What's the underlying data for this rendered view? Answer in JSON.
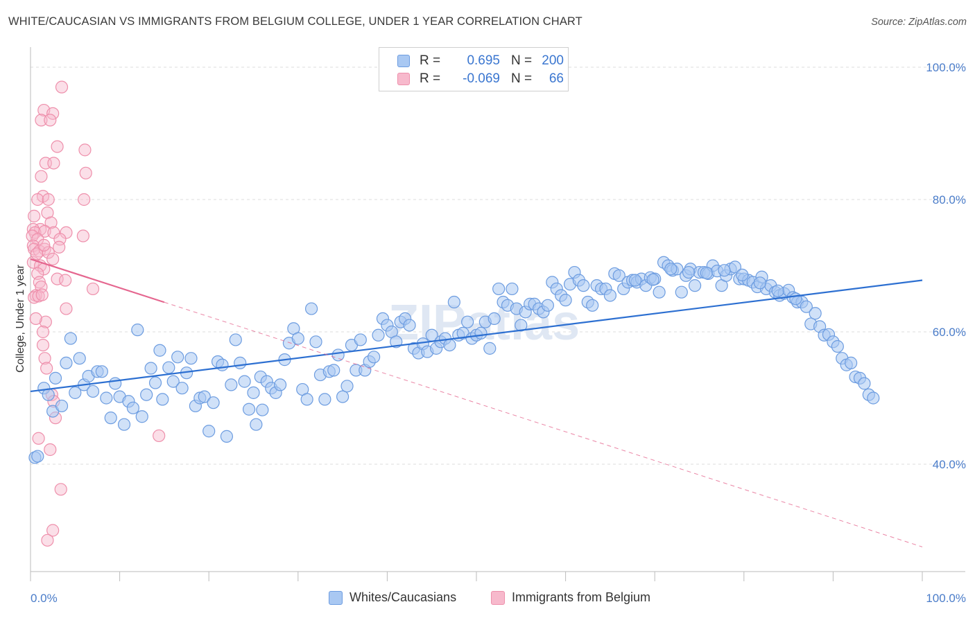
{
  "header": {
    "title": "WHITE/CAUCASIAN VS IMMIGRANTS FROM BELGIUM COLLEGE, UNDER 1 YEAR CORRELATION CHART",
    "source": "Source: ZipAtlas.com"
  },
  "watermark": "ZIPatlas",
  "legend": {
    "rows": [
      {
        "r_label": "R =",
        "r_value": "0.695",
        "n_label": "N =",
        "n_value": "200",
        "color": "#a9c8f2"
      },
      {
        "r_label": "R =",
        "r_value": "-0.069",
        "n_label": "N =",
        "n_value": "66",
        "color": "#f7b9cc"
      }
    ]
  },
  "bottom_legend": {
    "series1": "Whites/Caucasians",
    "series2": "Immigrants from Belgium"
  },
  "chart_data": {
    "type": "scatter",
    "title": "WHITE/CAUCASIAN VS IMMIGRANTS FROM BELGIUM COLLEGE, UNDER 1 YEAR CORRELATION CHART",
    "xlabel": "",
    "ylabel": "College, Under 1 year",
    "xlim": [
      0,
      100
    ],
    "ylim": [
      20,
      104
    ],
    "x_tick_labels": [
      "0.0%",
      "100.0%"
    ],
    "y_ticks": [
      40,
      60,
      80,
      100
    ],
    "y_tick_labels": [
      "40.0%",
      "60.0%",
      "80.0%",
      "100.0%"
    ],
    "grid": true,
    "legend_position": "top-center",
    "colors": {
      "blue_fill": "#a9c8f2",
      "blue_stroke": "#6c9ce0",
      "blue_line": "#2c6fd1",
      "pink_fill": "#f7b9cc",
      "pink_stroke": "#ee8fab",
      "pink_line": "#e5668f"
    },
    "series": [
      {
        "name": "Whites/Caucasians",
        "color": "#a9c8f2",
        "trend": {
          "x": [
            0,
            100
          ],
          "y": [
            51.0,
            67.8
          ],
          "style": "solid"
        },
        "points": [
          [
            0.5,
            41.0
          ],
          [
            0.8,
            41.2
          ],
          [
            1.5,
            51.5
          ],
          [
            2.0,
            50.5
          ],
          [
            2.5,
            48.0
          ],
          [
            2.8,
            53.0
          ],
          [
            3.5,
            48.8
          ],
          [
            4.0,
            55.3
          ],
          [
            4.5,
            59.0
          ],
          [
            5.0,
            50.8
          ],
          [
            5.5,
            56.0
          ],
          [
            6.0,
            52.0
          ],
          [
            6.5,
            53.3
          ],
          [
            7.0,
            51.0
          ],
          [
            7.5,
            54.0
          ],
          [
            8.0,
            54.0
          ],
          [
            8.5,
            50.0
          ],
          [
            9.0,
            47.0
          ],
          [
            9.5,
            52.2
          ],
          [
            10.0,
            50.2
          ],
          [
            10.5,
            46.0
          ],
          [
            11.0,
            49.5
          ],
          [
            11.5,
            48.5
          ],
          [
            12.0,
            60.3
          ],
          [
            12.5,
            47.2
          ],
          [
            13.0,
            50.5
          ],
          [
            13.5,
            54.5
          ],
          [
            14.0,
            52.3
          ],
          [
            14.5,
            57.2
          ],
          [
            14.8,
            49.8
          ],
          [
            15.5,
            54.6
          ],
          [
            16.0,
            52.5
          ],
          [
            16.5,
            56.2
          ],
          [
            17.0,
            51.5
          ],
          [
            17.5,
            53.8
          ],
          [
            18.0,
            56.0
          ],
          [
            18.5,
            48.8
          ],
          [
            19.0,
            50.0
          ],
          [
            19.5,
            50.2
          ],
          [
            20.0,
            45.0
          ],
          [
            20.5,
            49.3
          ],
          [
            21.0,
            55.5
          ],
          [
            21.5,
            55.0
          ],
          [
            22.0,
            44.2
          ],
          [
            22.5,
            52.0
          ],
          [
            23.0,
            58.8
          ],
          [
            23.5,
            55.3
          ],
          [
            24.0,
            52.5
          ],
          [
            24.5,
            48.3
          ],
          [
            25.0,
            50.8
          ],
          [
            25.3,
            46.0
          ],
          [
            25.8,
            53.2
          ],
          [
            26.0,
            48.2
          ],
          [
            26.5,
            52.5
          ],
          [
            27.0,
            51.5
          ],
          [
            27.5,
            50.8
          ],
          [
            28.0,
            52.0
          ],
          [
            28.5,
            55.8
          ],
          [
            29.0,
            58.3
          ],
          [
            29.5,
            60.5
          ],
          [
            30.0,
            59.0
          ],
          [
            30.5,
            51.3
          ],
          [
            31.0,
            49.8
          ],
          [
            31.5,
            63.5
          ],
          [
            32.0,
            58.5
          ],
          [
            32.5,
            53.5
          ],
          [
            33.0,
            49.8
          ],
          [
            33.5,
            54.0
          ],
          [
            34.0,
            54.2
          ],
          [
            34.5,
            56.5
          ],
          [
            35.0,
            50.2
          ],
          [
            35.5,
            51.8
          ],
          [
            36.0,
            58.0
          ],
          [
            36.5,
            54.2
          ],
          [
            37.0,
            58.8
          ],
          [
            37.5,
            54.2
          ],
          [
            38.0,
            55.5
          ],
          [
            38.5,
            56.2
          ],
          [
            39.0,
            59.5
          ],
          [
            39.5,
            62.0
          ],
          [
            40.0,
            61.0
          ],
          [
            40.5,
            60.0
          ],
          [
            41.0,
            58.5
          ],
          [
            41.5,
            61.5
          ],
          [
            42.0,
            62.0
          ],
          [
            42.5,
            61.0
          ],
          [
            43.0,
            57.5
          ],
          [
            43.5,
            56.8
          ],
          [
            44.0,
            58.2
          ],
          [
            44.5,
            57.0
          ],
          [
            45.0,
            59.5
          ],
          [
            45.5,
            57.5
          ],
          [
            46.0,
            58.5
          ],
          [
            46.5,
            59.0
          ],
          [
            47.0,
            58.0
          ],
          [
            47.5,
            64.5
          ],
          [
            48.0,
            59.5
          ],
          [
            48.5,
            59.8
          ],
          [
            49.0,
            61.5
          ],
          [
            49.5,
            59.0
          ],
          [
            50.0,
            59.5
          ],
          [
            50.5,
            59.8
          ],
          [
            51.0,
            61.5
          ],
          [
            51.5,
            57.5
          ],
          [
            52.0,
            62.0
          ],
          [
            52.5,
            66.5
          ],
          [
            53.0,
            64.5
          ],
          [
            53.5,
            64.0
          ],
          [
            54.0,
            66.5
          ],
          [
            54.5,
            63.5
          ],
          [
            55.0,
            61.0
          ],
          [
            55.5,
            63.0
          ],
          [
            56.0,
            64.2
          ],
          [
            56.5,
            64.2
          ],
          [
            57.0,
            63.5
          ],
          [
            57.5,
            63.0
          ],
          [
            58.0,
            64.0
          ],
          [
            58.5,
            67.5
          ],
          [
            59.0,
            66.5
          ],
          [
            59.5,
            65.5
          ],
          [
            60.0,
            64.8
          ],
          [
            60.5,
            67.2
          ],
          [
            61.0,
            69.0
          ],
          [
            61.5,
            67.8
          ],
          [
            62.0,
            67.0
          ],
          [
            62.5,
            64.5
          ],
          [
            63.0,
            64.0
          ],
          [
            63.5,
            67.0
          ],
          [
            64.0,
            66.5
          ],
          [
            64.5,
            66.5
          ],
          [
            65.0,
            65.5
          ],
          [
            65.5,
            68.8
          ],
          [
            66.0,
            68.5
          ],
          [
            66.5,
            66.5
          ],
          [
            67.0,
            67.5
          ],
          [
            67.5,
            67.8
          ],
          [
            68.0,
            67.5
          ],
          [
            68.5,
            68.0
          ],
          [
            69.0,
            67.0
          ],
          [
            69.5,
            68.2
          ],
          [
            70.0,
            68.0
          ],
          [
            70.5,
            66.0
          ],
          [
            71.0,
            70.5
          ],
          [
            71.5,
            70.0
          ],
          [
            72.0,
            69.3
          ],
          [
            72.5,
            69.5
          ],
          [
            73.0,
            66.0
          ],
          [
            73.5,
            68.5
          ],
          [
            74.0,
            69.5
          ],
          [
            74.5,
            67.0
          ],
          [
            75.0,
            69.0
          ],
          [
            75.5,
            69.0
          ],
          [
            76.0,
            68.8
          ],
          [
            76.5,
            70.0
          ],
          [
            77.0,
            69.2
          ],
          [
            77.5,
            67.0
          ],
          [
            78.0,
            68.5
          ],
          [
            78.5,
            69.5
          ],
          [
            79.0,
            69.8
          ],
          [
            79.5,
            68.0
          ],
          [
            80.0,
            68.0
          ],
          [
            80.5,
            67.8
          ],
          [
            81.0,
            67.5
          ],
          [
            81.5,
            66.8
          ],
          [
            82.0,
            68.3
          ],
          [
            82.5,
            66.5
          ],
          [
            83.0,
            67.0
          ],
          [
            83.5,
            66.0
          ],
          [
            84.0,
            65.5
          ],
          [
            84.5,
            65.8
          ],
          [
            85.0,
            66.3
          ],
          [
            85.5,
            65.2
          ],
          [
            86.0,
            64.5
          ],
          [
            86.5,
            64.5
          ],
          [
            87.0,
            63.8
          ],
          [
            87.5,
            61.2
          ],
          [
            88.0,
            62.8
          ],
          [
            88.5,
            60.8
          ],
          [
            89.0,
            59.5
          ],
          [
            89.5,
            59.6
          ],
          [
            90.0,
            58.5
          ],
          [
            90.5,
            57.8
          ],
          [
            91.0,
            56.0
          ],
          [
            91.5,
            55.0
          ],
          [
            92.0,
            55.3
          ],
          [
            92.5,
            53.2
          ],
          [
            93.0,
            53.0
          ],
          [
            93.5,
            52.2
          ],
          [
            94.0,
            50.5
          ],
          [
            94.5,
            50.0
          ],
          [
            67.8,
            67.8
          ],
          [
            69.8,
            67.9
          ],
          [
            71.8,
            69.5
          ],
          [
            73.8,
            69.0
          ],
          [
            75.8,
            68.9
          ],
          [
            77.8,
            69.3
          ],
          [
            79.8,
            68.6
          ],
          [
            81.8,
            67.4
          ],
          [
            83.8,
            66.2
          ],
          [
            85.8,
            65.0
          ]
        ]
      },
      {
        "name": "Immigrants from Belgium",
        "color": "#f7b9cc",
        "trend": {
          "x": [
            0,
            100
          ],
          "y": [
            71.0,
            27.5
          ],
          "solid_until": 15.0,
          "style": "solid-then-dashed"
        },
        "points": [
          [
            3.5,
            97.0
          ],
          [
            1.5,
            93.5
          ],
          [
            2.5,
            93.0
          ],
          [
            1.2,
            92.0
          ],
          [
            2.2,
            92.0
          ],
          [
            3.0,
            88.0
          ],
          [
            1.7,
            85.5
          ],
          [
            2.6,
            85.5
          ],
          [
            6.1,
            87.5
          ],
          [
            6.2,
            84.0
          ],
          [
            1.2,
            83.5
          ],
          [
            1.4,
            80.5
          ],
          [
            0.8,
            80.0
          ],
          [
            2.0,
            80.0
          ],
          [
            6.0,
            80.0
          ],
          [
            1.9,
            78.0
          ],
          [
            0.4,
            77.5
          ],
          [
            2.3,
            76.5
          ],
          [
            1.1,
            75.5
          ],
          [
            0.3,
            75.5
          ],
          [
            0.5,
            75.0
          ],
          [
            1.6,
            75.2
          ],
          [
            2.6,
            75.0
          ],
          [
            4.0,
            75.0
          ],
          [
            5.9,
            74.5
          ],
          [
            0.2,
            74.5
          ],
          [
            0.8,
            74.0
          ],
          [
            3.3,
            74.0
          ],
          [
            0.3,
            73.0
          ],
          [
            0.4,
            72.5
          ],
          [
            1.0,
            72.2
          ],
          [
            1.6,
            72.5
          ],
          [
            2.0,
            72.0
          ],
          [
            2.5,
            71.0
          ],
          [
            3.2,
            72.8
          ],
          [
            0.3,
            70.5
          ],
          [
            1.1,
            70.0
          ],
          [
            1.5,
            69.5
          ],
          [
            0.8,
            68.8
          ],
          [
            1.0,
            67.5
          ],
          [
            3.0,
            68.0
          ],
          [
            3.9,
            67.8
          ],
          [
            1.2,
            66.8
          ],
          [
            7.0,
            66.5
          ],
          [
            0.6,
            65.5
          ],
          [
            0.4,
            65.2
          ],
          [
            0.9,
            65.4
          ],
          [
            1.3,
            65.6
          ],
          [
            4.0,
            63.5
          ],
          [
            1.7,
            61.5
          ],
          [
            1.4,
            60.0
          ],
          [
            1.6,
            56.0
          ],
          [
            1.8,
            54.5
          ],
          [
            2.4,
            50.5
          ],
          [
            2.6,
            49.5
          ],
          [
            2.8,
            47.0
          ],
          [
            14.4,
            44.3
          ],
          [
            0.9,
            43.9
          ],
          [
            2.2,
            42.2
          ],
          [
            3.4,
            36.2
          ],
          [
            2.5,
            30.0
          ],
          [
            1.9,
            28.5
          ],
          [
            1.4,
            58.0
          ],
          [
            0.6,
            62.0
          ],
          [
            0.7,
            71.8
          ],
          [
            1.5,
            73.1
          ]
        ]
      }
    ]
  }
}
